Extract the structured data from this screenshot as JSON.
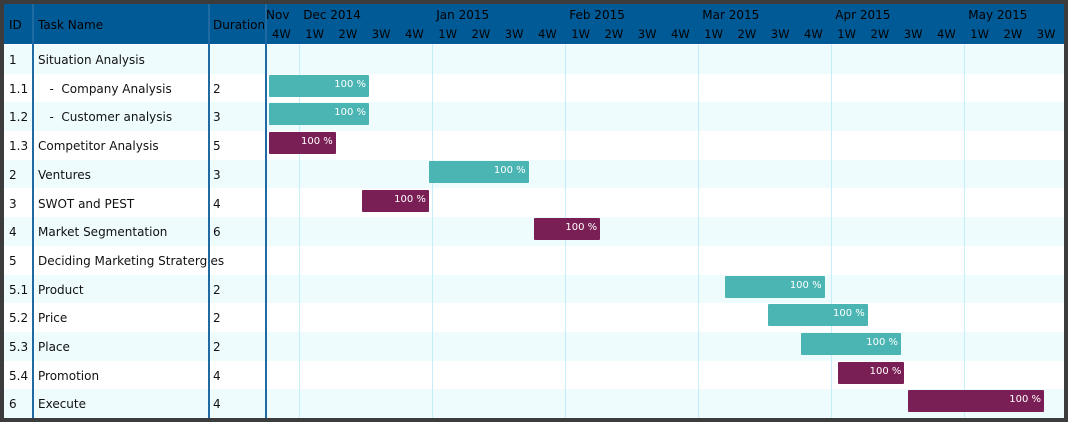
{
  "header": {
    "id": "ID",
    "task": "Task Name",
    "duration": "Duration"
  },
  "months": [
    {
      "label": "Nov",
      "week_index": 0
    },
    {
      "label": "Dec 2014",
      "week_index": 1
    },
    {
      "label": "Jan 2015",
      "week_index": 5
    },
    {
      "label": "Feb 2015",
      "week_index": 9
    },
    {
      "label": "Mar 2015",
      "week_index": 13
    },
    {
      "label": "Apr 2015",
      "week_index": 17
    },
    {
      "label": "May 2015",
      "week_index": 21
    }
  ],
  "weeks": [
    "4W",
    "1W",
    "2W",
    "3W",
    "4W",
    "1W",
    "2W",
    "3W",
    "4W",
    "1W",
    "2W",
    "3W",
    "4W",
    "1W",
    "2W",
    "3W",
    "4W",
    "1W",
    "2W",
    "3W",
    "4W",
    "1W",
    "2W",
    "3W"
  ],
  "colors": {
    "header": "#005a96",
    "teal": "#4ab5b3",
    "purple": "#7a1f55",
    "row_alt": "#eefcfe"
  },
  "tasks": [
    {
      "id": "1",
      "name": "Situation Analysis",
      "duration": "",
      "bar": null
    },
    {
      "id": "1.1",
      "name": "   -  Company Analysis",
      "duration": "2",
      "bar": {
        "start": 0.1,
        "end": 3.1,
        "color": "teal",
        "label": "100 %"
      }
    },
    {
      "id": "1.2",
      "name": "   -  Customer analysis",
      "duration": "3",
      "bar": {
        "start": 0.1,
        "end": 3.1,
        "color": "teal",
        "label": "100 %"
      }
    },
    {
      "id": "1.3",
      "name": "Competitor Analysis",
      "duration": "5",
      "bar": {
        "start": 0.1,
        "end": 2.1,
        "color": "purple",
        "label": "100 %"
      }
    },
    {
      "id": "2",
      "name": "Ventures",
      "duration": "3",
      "bar": {
        "start": 4.9,
        "end": 7.9,
        "color": "teal",
        "label": "100 %"
      }
    },
    {
      "id": "3",
      "name": "SWOT and PEST",
      "duration": "4",
      "bar": {
        "start": 2.9,
        "end": 4.9,
        "color": "purple",
        "label": "100 %"
      }
    },
    {
      "id": "4",
      "name": "Market Segmentation",
      "duration": "6",
      "bar": {
        "start": 8.05,
        "end": 10.05,
        "color": "purple",
        "label": "100 %"
      }
    },
    {
      "id": "5",
      "name": "Deciding Marketing Stratergies",
      "duration": "",
      "bar": null
    },
    {
      "id": "5.1",
      "name": "Product",
      "duration": "2",
      "bar": {
        "start": 13.8,
        "end": 16.8,
        "color": "teal",
        "label": "100 %"
      }
    },
    {
      "id": "5.2",
      "name": "Price",
      "duration": "2",
      "bar": {
        "start": 15.1,
        "end": 18.1,
        "color": "teal",
        "label": "100 %"
      }
    },
    {
      "id": "5.3",
      "name": "Place",
      "duration": "2",
      "bar": {
        "start": 16.1,
        "end": 19.1,
        "color": "teal",
        "label": "100 %"
      }
    },
    {
      "id": "5.4",
      "name": "Promotion",
      "duration": "4",
      "bar": {
        "start": 17.2,
        "end": 19.2,
        "color": "purple",
        "label": "100 %"
      }
    },
    {
      "id": "6",
      "name": "Execute",
      "duration": "4",
      "bar": {
        "start": 19.3,
        "end": 23.4,
        "color": "purple",
        "label": "100 %"
      }
    }
  ]
}
